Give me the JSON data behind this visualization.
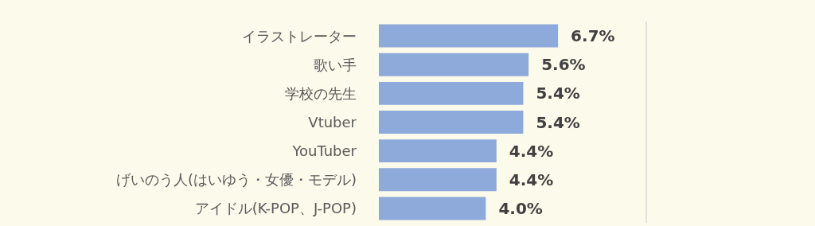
{
  "chart_data": {
    "type": "bar",
    "orientation": "horizontal",
    "categories": [
      "イラストレーター",
      "歌い手",
      "学校の先生",
      "Vtuber",
      "YouTuber",
      "げいのう人(はいゆう・女優・モデル)",
      "アイドル(K-POP、J-POP)"
    ],
    "values": [
      6.7,
      5.6,
      5.4,
      5.4,
      4.4,
      4.4,
      4.0
    ],
    "value_labels": [
      "6.7%",
      "5.6%",
      "5.4%",
      "5.4%",
      "4.4%",
      "4.4%",
      "4.0%"
    ],
    "color": "#8eaadb",
    "xlim": [
      0,
      10
    ],
    "ref_lines": [
      {
        "axis": "x",
        "value": 10,
        "color": "#d9d9d9"
      }
    ],
    "tick_labels": "y"
  }
}
